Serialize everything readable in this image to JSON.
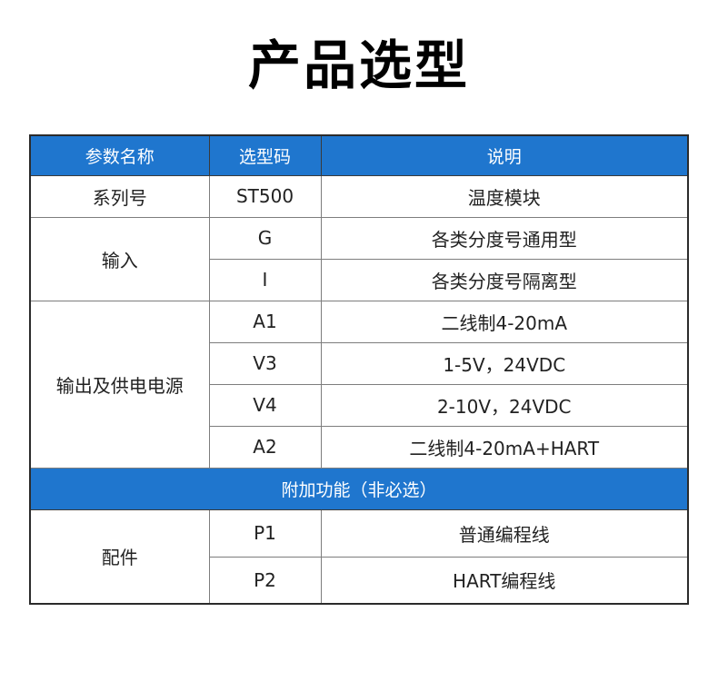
{
  "title": "产品选型",
  "colors": {
    "accent_blue": "#1f76ce",
    "outer_border": "#2b2b2b",
    "inner_border": "#7d7d7d",
    "header_text": "#ffffff",
    "body_text": "#222222"
  },
  "table": {
    "header": {
      "param": "参数名称",
      "code": "选型码",
      "desc": "说明"
    },
    "rows": [
      {
        "param": "系列号",
        "code": "ST500",
        "desc": "温度模块"
      },
      {
        "param": "输入",
        "code": "G",
        "desc": "各类分度号通用型"
      },
      {
        "code": "I",
        "desc": "各类分度号隔离型"
      },
      {
        "param": "输出及供电电源",
        "code": "A1",
        "desc": "二线制4-20mA"
      },
      {
        "code": "V3",
        "desc": "1-5V，24VDC"
      },
      {
        "code": "V4",
        "desc": "2-10V，24VDC"
      },
      {
        "code": "A2",
        "desc": "二线制4-20mA+HART"
      },
      {
        "banner": "附加功能（非必选）"
      },
      {
        "param": "配件",
        "code": "P1",
        "desc": "普通编程线"
      },
      {
        "code": "P2",
        "desc": "HART编程线"
      }
    ]
  }
}
